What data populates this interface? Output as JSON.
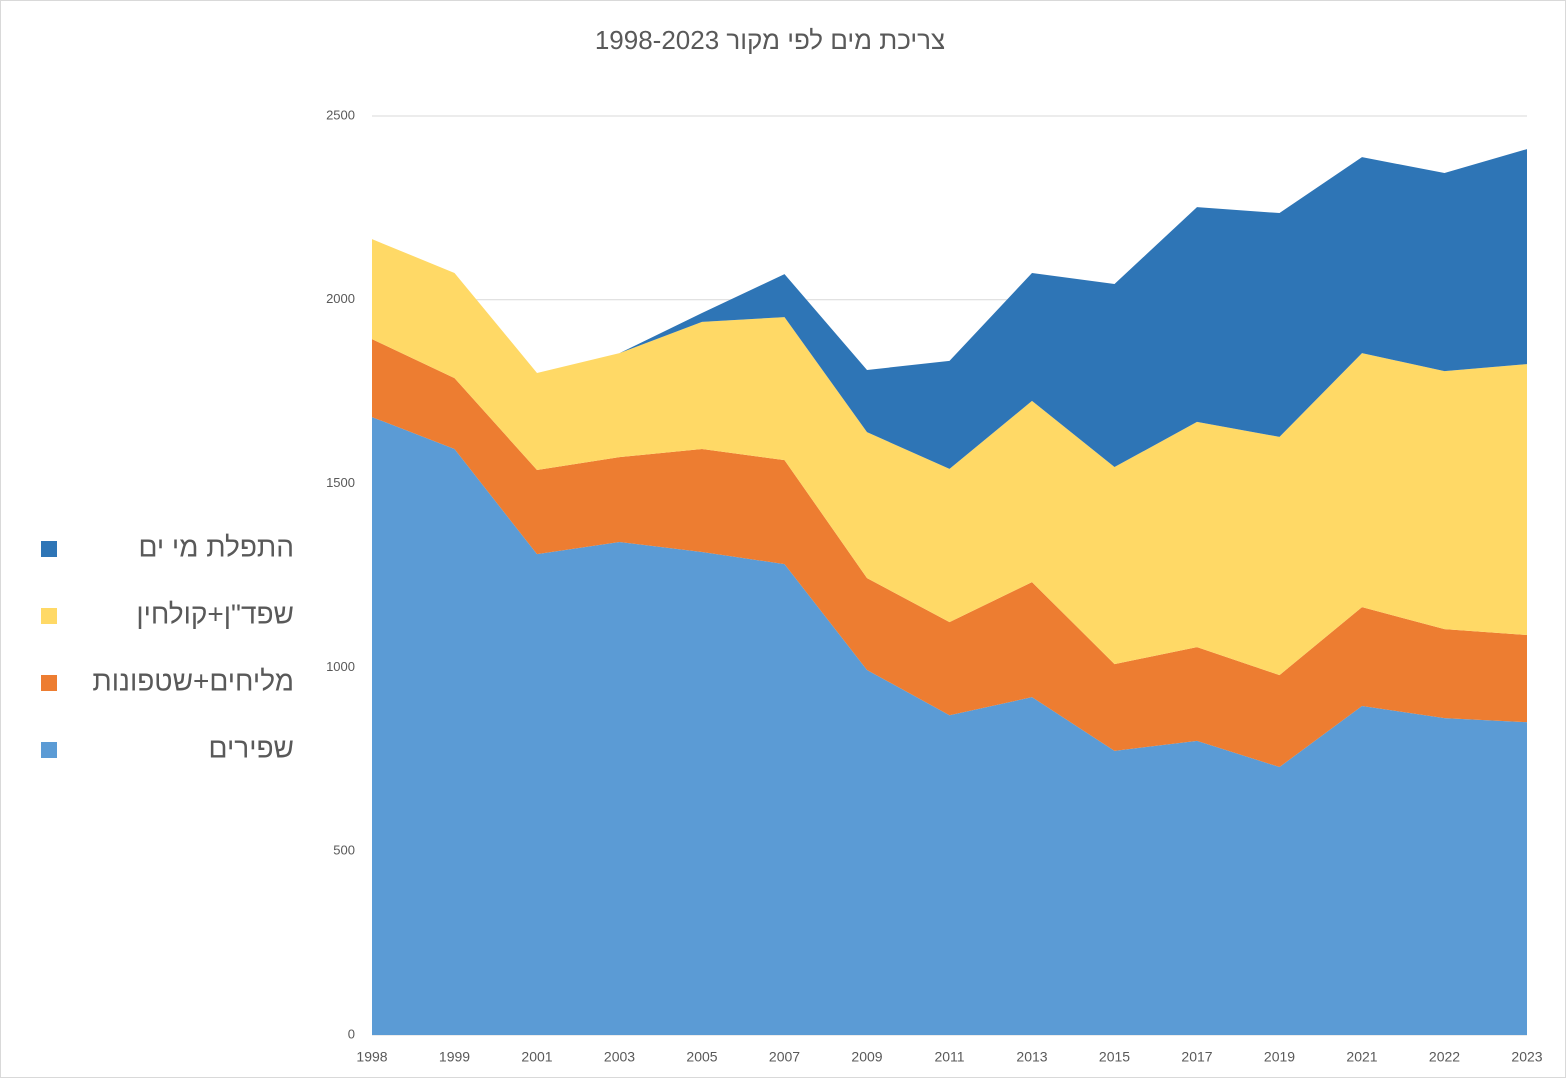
{
  "chart_data": {
    "type": "stacked_area",
    "title": "צריכת מים לפי מקור 1998-2023",
    "categories": [
      "1998",
      "1999",
      "2001",
      "2003",
      "2005",
      "2007",
      "2009",
      "2011",
      "2013",
      "2015",
      "2017",
      "2019",
      "2021",
      "2022",
      "2023"
    ],
    "series": [
      {
        "name": "שפירים",
        "color": "#5b9bd5",
        "values": [
          1681,
          1594,
          1308,
          1341,
          1314,
          1281,
          993,
          870,
          919,
          773,
          800,
          729,
          895,
          862,
          851
        ]
      },
      {
        "name": "מליחים+שטפונות",
        "color": "#ed7d31",
        "values": [
          212,
          193,
          229,
          231,
          280,
          283,
          250,
          253,
          313,
          236,
          255,
          250,
          269,
          242,
          237
        ]
      },
      {
        "name": "שפד\"ן+קולחין",
        "color": "#ffd966",
        "values": [
          272,
          286,
          264,
          283,
          346,
          389,
          397,
          417,
          493,
          536,
          613,
          648,
          691,
          702,
          737
        ]
      },
      {
        "name": "התפלת מי ים",
        "color": "#2e75b6",
        "values": [
          0,
          0,
          0,
          0,
          24,
          117,
          169,
          294,
          348,
          498,
          584,
          609,
          533,
          539,
          585
        ]
      }
    ],
    "ylim": [
      0,
      2500
    ],
    "yticks": [
      0,
      500,
      1000,
      1500,
      2000,
      2500
    ],
    "grid": true,
    "legend": "left"
  }
}
